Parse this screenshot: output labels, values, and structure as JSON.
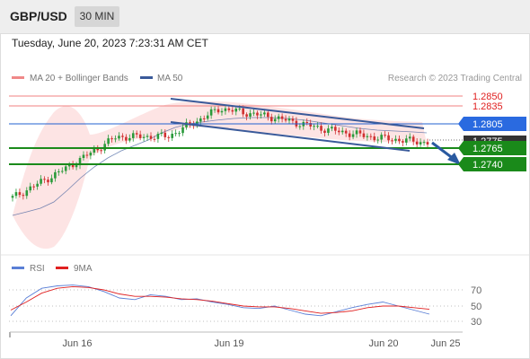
{
  "header": {
    "pair": "GBP/USD",
    "timeframe": "30 MIN"
  },
  "datetime": "Tuesday, June 20, 2023 7:23:31 AM CET",
  "legend": {
    "bollinger_label": "MA 20 + Bollinger Bands",
    "ma50_label": "MA 50",
    "credit": "Research © 2023 Trading Central"
  },
  "price_levels": {
    "resistance_2": "1.2850",
    "resistance_1": "1.2835",
    "pivot": "1.2805",
    "current": "1.2775",
    "support_1": "1.2765",
    "support_2": "1.2740"
  },
  "x_labels": [
    "Jun 16",
    "Jun 19",
    "Jun 20",
    "Jun 25"
  ],
  "rsi": {
    "rsi_label": "RSI",
    "ma_label": "9MA",
    "levels": [
      "70",
      "50",
      "30"
    ]
  },
  "colors": {
    "resistance": "#e02020",
    "pivot": "#2060d0",
    "support": "#1a8a1a",
    "band_fill": "#fde4e4",
    "ma50": "#3a5a9a",
    "rsi": "#5a7fd6",
    "rsi_ma": "#e02020",
    "current": "#333333"
  },
  "chart_data": [
    {
      "type": "line",
      "subtype": "candlestick",
      "ylim": [
        1.266,
        1.287
      ],
      "resistances": [
        1.285,
        1.2835
      ],
      "pivot": 1.2805,
      "supports": [
        1.2765,
        1.274
      ],
      "current_price": 1.2775,
      "channel_upper": [
        [
          1.2845,
          1.2804
        ]
      ],
      "channel_lower": [
        [
          1.2806,
          1.2768
        ]
      ],
      "key_points": [
        {
          "x": "Jun 15 late",
          "y": 1.2686
        },
        {
          "x": "Jun 16 early",
          "y": 1.2732
        },
        {
          "x": "Jun 16",
          "y": 1.2784
        },
        {
          "x": "Jun 18 close",
          "y": 1.2785
        },
        {
          "x": "Jun 19 open",
          "y": 1.283
        },
        {
          "x": "Jun 19",
          "y": 1.2816
        },
        {
          "x": "Jun 19 late",
          "y": 1.2797
        },
        {
          "x": "Jun 20 early",
          "y": 1.2783
        },
        {
          "x": "Jun 20",
          "y": 1.2775
        }
      ]
    },
    {
      "type": "line",
      "ylim": [
        20,
        90
      ],
      "series": [
        {
          "name": "RSI",
          "values": [
            38,
            60,
            72,
            75,
            76,
            74,
            68,
            60,
            58,
            64,
            62,
            58,
            59,
            55,
            52,
            48,
            47,
            50,
            45,
            40,
            38,
            43,
            48,
            52,
            55,
            50,
            45,
            40
          ]
        },
        {
          "name": "9MA",
          "values": [
            45,
            55,
            66,
            72,
            74,
            73,
            70,
            65,
            62,
            62,
            61,
            59,
            58,
            56,
            53,
            50,
            49,
            49,
            47,
            44,
            41,
            42,
            44,
            48,
            50,
            50,
            48,
            46
          ]
        }
      ]
    }
  ]
}
